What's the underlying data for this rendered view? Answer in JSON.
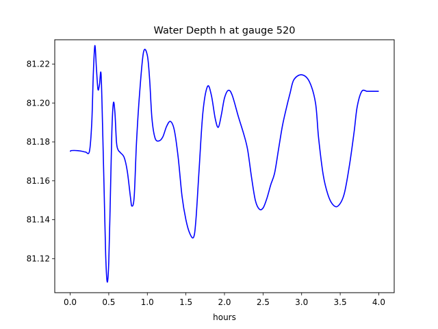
{
  "chart_data": {
    "type": "line",
    "title": "Water Depth h at gauge 520",
    "xlabel": "hours",
    "ylabel": "",
    "xlim": [
      -0.2,
      4.2
    ],
    "ylim": [
      81.1025,
      81.2325
    ],
    "x_ticks": [
      0.0,
      0.5,
      1.0,
      1.5,
      2.0,
      2.5,
      3.0,
      3.5,
      4.0
    ],
    "x_tick_labels": [
      "0.0",
      "0.5",
      "1.0",
      "1.5",
      "2.0",
      "2.5",
      "3.0",
      "3.5",
      "4.0"
    ],
    "y_ticks": [
      81.12,
      81.14,
      81.16,
      81.18,
      81.2,
      81.22
    ],
    "y_tick_labels": [
      "81.12",
      "81.14",
      "81.16",
      "81.18",
      "81.20",
      "81.22"
    ],
    "grid": false,
    "series": [
      {
        "color": "#0000ff",
        "x": [
          0.0,
          0.01,
          0.05,
          0.1,
          0.15,
          0.2,
          0.25,
          0.28,
          0.3,
          0.32,
          0.34,
          0.36,
          0.38,
          0.4,
          0.42,
          0.44,
          0.46,
          0.48,
          0.5,
          0.52,
          0.54,
          0.56,
          0.58,
          0.6,
          0.62,
          0.65,
          0.7,
          0.74,
          0.78,
          0.8,
          0.83,
          0.86,
          0.9,
          0.95,
          1.0,
          1.03,
          1.06,
          1.1,
          1.15,
          1.2,
          1.25,
          1.3,
          1.35,
          1.4,
          1.45,
          1.5,
          1.55,
          1.6,
          1.63,
          1.67,
          1.72,
          1.78,
          1.83,
          1.88,
          1.92,
          1.96,
          2.0,
          2.05,
          2.1,
          2.18,
          2.25,
          2.3,
          2.35,
          2.4,
          2.45,
          2.5,
          2.55,
          2.6,
          2.65,
          2.7,
          2.75,
          2.8,
          2.85,
          2.9,
          3.0,
          3.1,
          3.18,
          3.22,
          3.28,
          3.34,
          3.4,
          3.47,
          3.55,
          3.62,
          3.68,
          3.72,
          3.78,
          3.85,
          3.92,
          4.0
        ],
        "values": [
          81.175,
          81.1755,
          81.1756,
          81.1755,
          81.1752,
          81.1748,
          81.1752,
          81.19,
          81.215,
          81.2295,
          81.218,
          81.207,
          81.2095,
          81.215,
          81.188,
          81.155,
          81.122,
          81.108,
          81.118,
          81.15,
          81.185,
          81.2,
          81.195,
          81.18,
          81.176,
          81.1745,
          81.172,
          81.165,
          81.152,
          81.147,
          81.152,
          81.18,
          81.205,
          81.226,
          81.2245,
          81.212,
          81.192,
          81.182,
          81.1805,
          81.1825,
          81.188,
          81.1905,
          81.186,
          81.172,
          81.152,
          81.14,
          81.133,
          81.131,
          81.14,
          81.165,
          81.195,
          81.2085,
          81.204,
          81.192,
          81.1875,
          81.194,
          81.2025,
          81.2065,
          81.204,
          81.193,
          81.184,
          81.176,
          81.162,
          81.15,
          81.1455,
          81.146,
          81.151,
          81.158,
          81.164,
          81.176,
          81.188,
          81.197,
          81.205,
          81.212,
          81.2145,
          81.211,
          81.2,
          81.182,
          81.163,
          81.153,
          81.148,
          81.147,
          81.153,
          81.168,
          81.185,
          81.198,
          81.206,
          81.206,
          81.206,
          81.206
        ]
      }
    ]
  }
}
